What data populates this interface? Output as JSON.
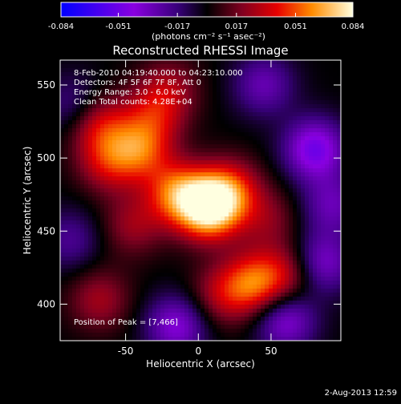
{
  "chart_data": {
    "type": "heatmap",
    "title": "Reconstructed RHESSI Image",
    "xlabel": "Heliocentric X (arcsec)",
    "ylabel": "Heliocentric Y (arcsec)",
    "xlim": [
      -95,
      98
    ],
    "ylim": [
      375,
      567
    ],
    "x_ticks": [
      -50,
      0,
      50
    ],
    "y_ticks": [
      400,
      450,
      500,
      550
    ],
    "colorbar": {
      "range": [
        -0.084,
        0.084
      ],
      "ticks": [
        "-0.084",
        "-0.051",
        "-0.017",
        "0.017",
        "0.051",
        "0.084"
      ],
      "tick_values": [
        -0.084,
        -0.051,
        -0.017,
        0.017,
        0.051,
        0.084
      ],
      "label": "(photons cm⁻² s⁻¹ asec⁻²)",
      "colormap": [
        [
          0.0,
          "#0000ff"
        ],
        [
          0.25,
          "#8a00e0"
        ],
        [
          0.4,
          "#38007a"
        ],
        [
          0.5,
          "#000000"
        ],
        [
          0.62,
          "#800020"
        ],
        [
          0.74,
          "#e60000"
        ],
        [
          0.86,
          "#ff8c00"
        ],
        [
          1.0,
          "#ffffe0"
        ]
      ]
    },
    "annotations": [
      "8-Feb-2010 04:19:40.000 to 04:23:10.000",
      "Detectors: 4F 5F 6F 7F 8F, Att 0",
      "Energy Range: 3.0 - 6.0 keV",
      "Clean    Total counts: 4.28E+04"
    ],
    "peak_label": "Position of Peak = [7,466]",
    "peak": [
      7,
      466
    ],
    "sources": [
      {
        "x": 7,
        "y": 466,
        "value": 0.084
      },
      {
        "x": -15,
        "y": 476,
        "value": 0.05
      },
      {
        "x": 22,
        "y": 478,
        "value": 0.04
      },
      {
        "x": -40,
        "y": 506,
        "value": 0.045
      },
      {
        "x": -62,
        "y": 497,
        "value": 0.032
      },
      {
        "x": -68,
        "y": 523,
        "value": 0.036
      },
      {
        "x": -30,
        "y": 530,
        "value": 0.028
      },
      {
        "x": -20,
        "y": 548,
        "value": 0.022
      },
      {
        "x": 38,
        "y": 414,
        "value": 0.05
      },
      {
        "x": 62,
        "y": 420,
        "value": 0.03
      },
      {
        "x": 15,
        "y": 406,
        "value": 0.026
      },
      {
        "x": -68,
        "y": 403,
        "value": 0.026
      },
      {
        "x": -45,
        "y": 454,
        "value": 0.024
      },
      {
        "x": 48,
        "y": 458,
        "value": 0.02
      },
      {
        "x": 80,
        "y": 506,
        "value": -0.05
      },
      {
        "x": 85,
        "y": 428,
        "value": -0.038
      },
      {
        "x": -15,
        "y": 385,
        "value": -0.04
      },
      {
        "x": 60,
        "y": 389,
        "value": -0.04
      },
      {
        "x": 92,
        "y": 468,
        "value": -0.03
      },
      {
        "x": -85,
        "y": 536,
        "value": -0.022
      },
      {
        "x": 45,
        "y": 550,
        "value": -0.03
      },
      {
        "x": -88,
        "y": 444,
        "value": -0.022
      }
    ]
  },
  "footer": {
    "timestamp": "2-Aug-2013 12:59"
  }
}
